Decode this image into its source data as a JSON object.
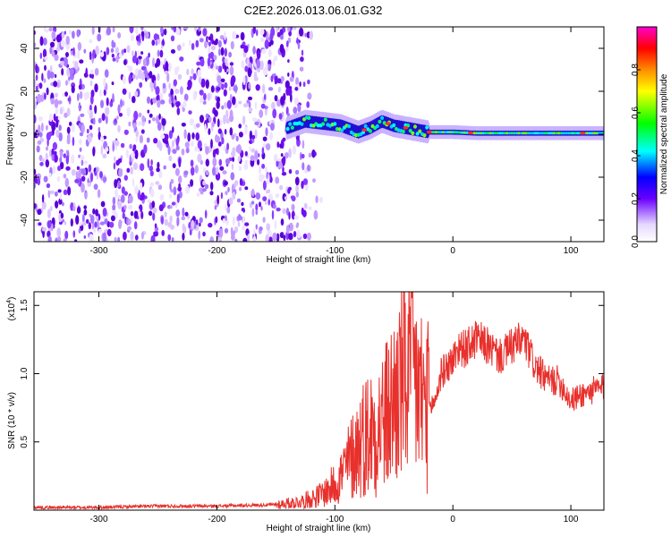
{
  "title": "C2E2.2026.013.06.01.G32",
  "colors": {
    "line": "#e8302c",
    "axis": "#000000",
    "background": "#ffffff"
  },
  "chart_data": [
    {
      "type": "heatmap",
      "xlabel": "Height of straight line (km)",
      "ylabel": "Frequency (Hz)",
      "xlim": [
        -355,
        128
      ],
      "ylim": [
        -50,
        50
      ],
      "x_ticks": [
        -300,
        -200,
        -100,
        0,
        100
      ],
      "x_tick_labels": [
        "-300",
        "-200",
        "-100",
        "0",
        "100"
      ],
      "y_ticks": [
        -40,
        -20,
        0,
        20,
        40
      ],
      "y_tick_labels": [
        "-40",
        "-20",
        "0",
        "20",
        "40"
      ],
      "noise_region_x": [
        -355,
        -140
      ],
      "signal_ridge": {
        "x": [
          -140,
          -125,
          -110,
          -95,
          -80,
          -70,
          -60,
          -50,
          -40,
          -30,
          -20,
          -10,
          0,
          20,
          50,
          80,
          128
        ],
        "freq_hz": [
          3,
          6,
          5,
          4,
          1,
          3,
          6,
          4,
          3,
          2,
          1,
          1,
          1,
          0.5,
          0.5,
          0.5,
          0.5
        ]
      },
      "colorbar": {
        "label": "Normalized spectral amplitude",
        "range": [
          0,
          1
        ],
        "ticks": [
          0.0,
          0.2,
          0.4,
          0.6,
          0.8
        ],
        "tick_labels": [
          "0.0",
          "0.2",
          "0.4",
          "0.6",
          "0.8"
        ]
      }
    },
    {
      "type": "line",
      "xlabel": "Height of straight line (km)",
      "ylabel": "SNR (10 * v/v)",
      "y_multiplier_label": "(x10",
      "y_multiplier_exponent": "4",
      "xlim": [
        -355,
        128
      ],
      "ylim": [
        0,
        1.6
      ],
      "x_ticks": [
        -300,
        -200,
        -100,
        0,
        100
      ],
      "x_tick_labels": [
        "-300",
        "-200",
        "-100",
        "0",
        "100"
      ],
      "y_ticks": [
        0.5,
        1.0,
        1.5
      ],
      "y_tick_labels": [
        "0.5",
        "1.0",
        "1.5"
      ],
      "series": [
        {
          "name": "SNR",
          "x": [
            -355,
            -300,
            -250,
            -200,
            -150,
            -130,
            -115,
            -105,
            -95,
            -85,
            -75,
            -65,
            -55,
            -45,
            -40,
            -35,
            -30,
            -25,
            -20,
            -15,
            -10,
            -5,
            0,
            5,
            10,
            20,
            30,
            40,
            50,
            60,
            70,
            80,
            90,
            100,
            110,
            120,
            128
          ],
          "y": [
            0.02,
            0.02,
            0.03,
            0.03,
            0.04,
            0.06,
            0.1,
            0.15,
            0.25,
            0.4,
            0.55,
            0.6,
            0.7,
            0.9,
            1.0,
            1.05,
            0.9,
            0.8,
            0.75,
            0.8,
            1.0,
            1.05,
            1.1,
            1.2,
            1.18,
            1.25,
            1.2,
            1.12,
            1.2,
            1.25,
            1.05,
            0.95,
            0.95,
            0.8,
            0.85,
            0.88,
            0.9
          ]
        }
      ]
    }
  ]
}
